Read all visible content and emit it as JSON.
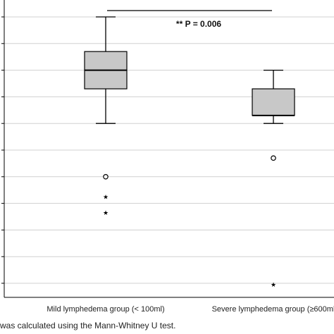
{
  "chart_data": {
    "type": "boxplot",
    "categories": [
      "Mild lymphedema group (< 100ml)",
      "Severe lymphedema group (≥600ml"
    ],
    "y_axis": {
      "min": 0,
      "max": 10.5,
      "gridlines": [
        0,
        1,
        2,
        3,
        4,
        5,
        6,
        7,
        8,
        9,
        10
      ],
      "tick_labels_visible": false
    },
    "grid": true,
    "boxes": [
      {
        "category": "Mild lymphedema group (< 100ml)",
        "whisker_low": 6.0,
        "q1": 7.3,
        "median": 8.0,
        "q3": 8.7,
        "whisker_high": 10.0,
        "outliers": [
          {
            "value": 4.0,
            "marker": "circle"
          },
          {
            "value": 3.3,
            "marker": "star"
          },
          {
            "value": 2.7,
            "marker": "star"
          }
        ]
      },
      {
        "category": "Severe lymphedema group (≥600ml",
        "whisker_low": 6.0,
        "q1": 6.3,
        "median": 6.3,
        "q3": 7.3,
        "whisker_high": 8.0,
        "outliers": [
          {
            "value": 4.7,
            "marker": "circle"
          },
          {
            "value": 0.0,
            "marker": "star"
          }
        ]
      }
    ],
    "annotation": "** P = 0.006",
    "footnote": "was calculated using the Mann-Whitney U test.",
    "colors": {
      "box_fill": "#c8c8c8",
      "line": "#000000",
      "grid": "#d0d0d0"
    }
  }
}
